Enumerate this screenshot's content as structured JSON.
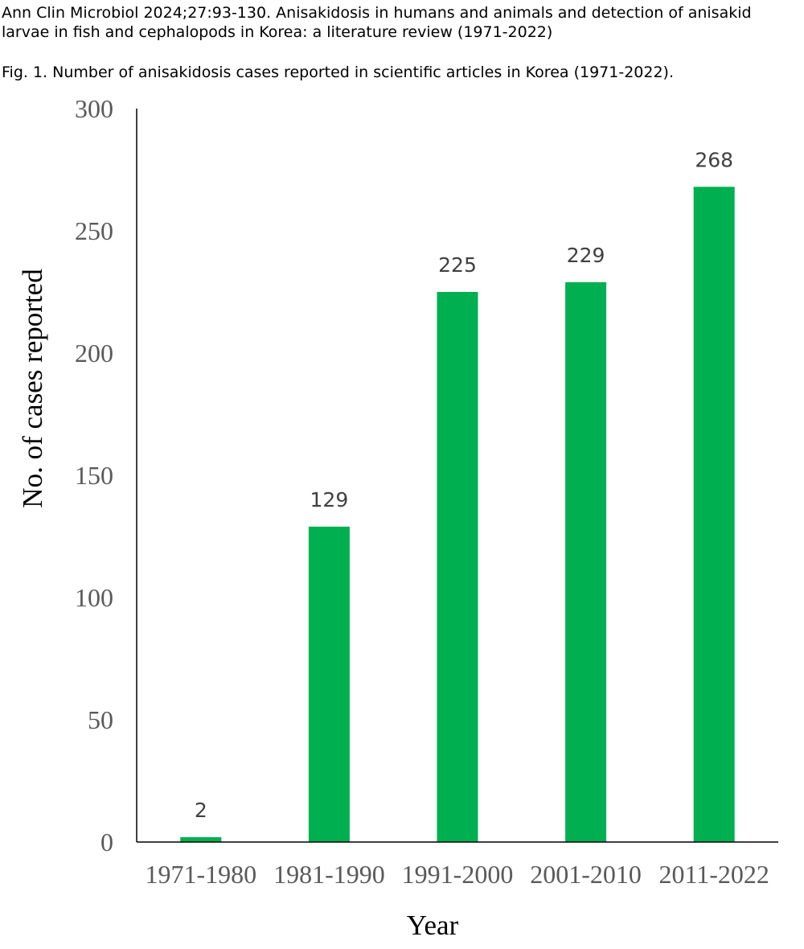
{
  "header": {
    "citation_line1": "Ann Clin Microbiol 2024;27:93-130. Anisakidosis in humans and animals and detection of anisakid",
    "citation_line2": "larvae in fish and cephalopods in Korea: a literature review (1971-2022)"
  },
  "figure": {
    "caption": "Fig. 1. Number of anisakidosis cases reported in scientific articles in Korea (1971-2022)."
  },
  "chart_data": {
    "type": "bar",
    "categories": [
      "1971-1980",
      "1981-1990",
      "1991-2000",
      "2001-2010",
      "2011-2022"
    ],
    "values": [
      2,
      129,
      225,
      229,
      268
    ],
    "data_labels": [
      "2",
      "129",
      "225",
      "229",
      "268"
    ],
    "xlabel": "Year",
    "ylabel": "No. of cases reported",
    "ylim": [
      0,
      300
    ],
    "yticks": [
      0,
      50,
      100,
      150,
      200,
      250,
      300
    ],
    "grid": false,
    "legend": "none",
    "bar_color": "#00B050"
  }
}
